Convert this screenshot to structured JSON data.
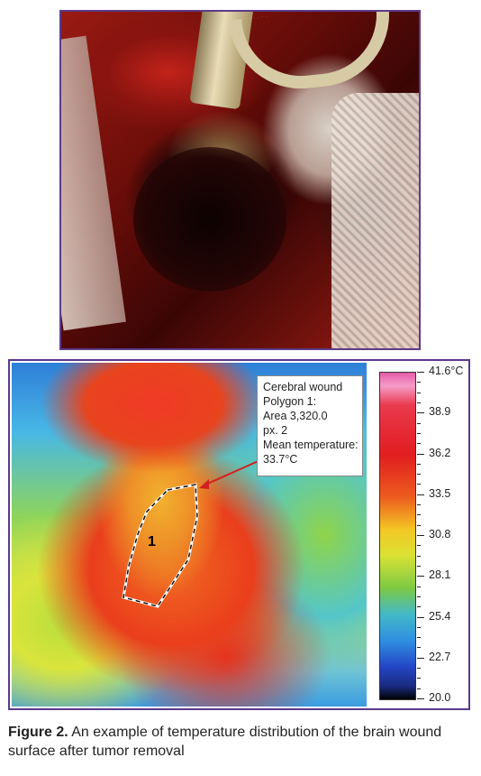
{
  "annotation": {
    "line1": "Cerebral wound",
    "line2": "Polygon 1:",
    "line3": "Area 3,320.0",
    "line4": "px. 2",
    "line5": "Mean temperature:",
    "line6": "33.7°C"
  },
  "polygon_label": "1",
  "scale": {
    "labels": [
      "41.6°C",
      "38.9",
      "36.2",
      "33.5",
      "30.8",
      "28.1",
      "25.4",
      "22.7",
      "20.0"
    ]
  },
  "caption": {
    "prefix": "Figure 2.",
    "text": " An example of temperature distribution of the brain wound surface after tumor removal"
  },
  "colors": {
    "frame": "#5b3a8c",
    "arrow": "#d21f1f"
  }
}
